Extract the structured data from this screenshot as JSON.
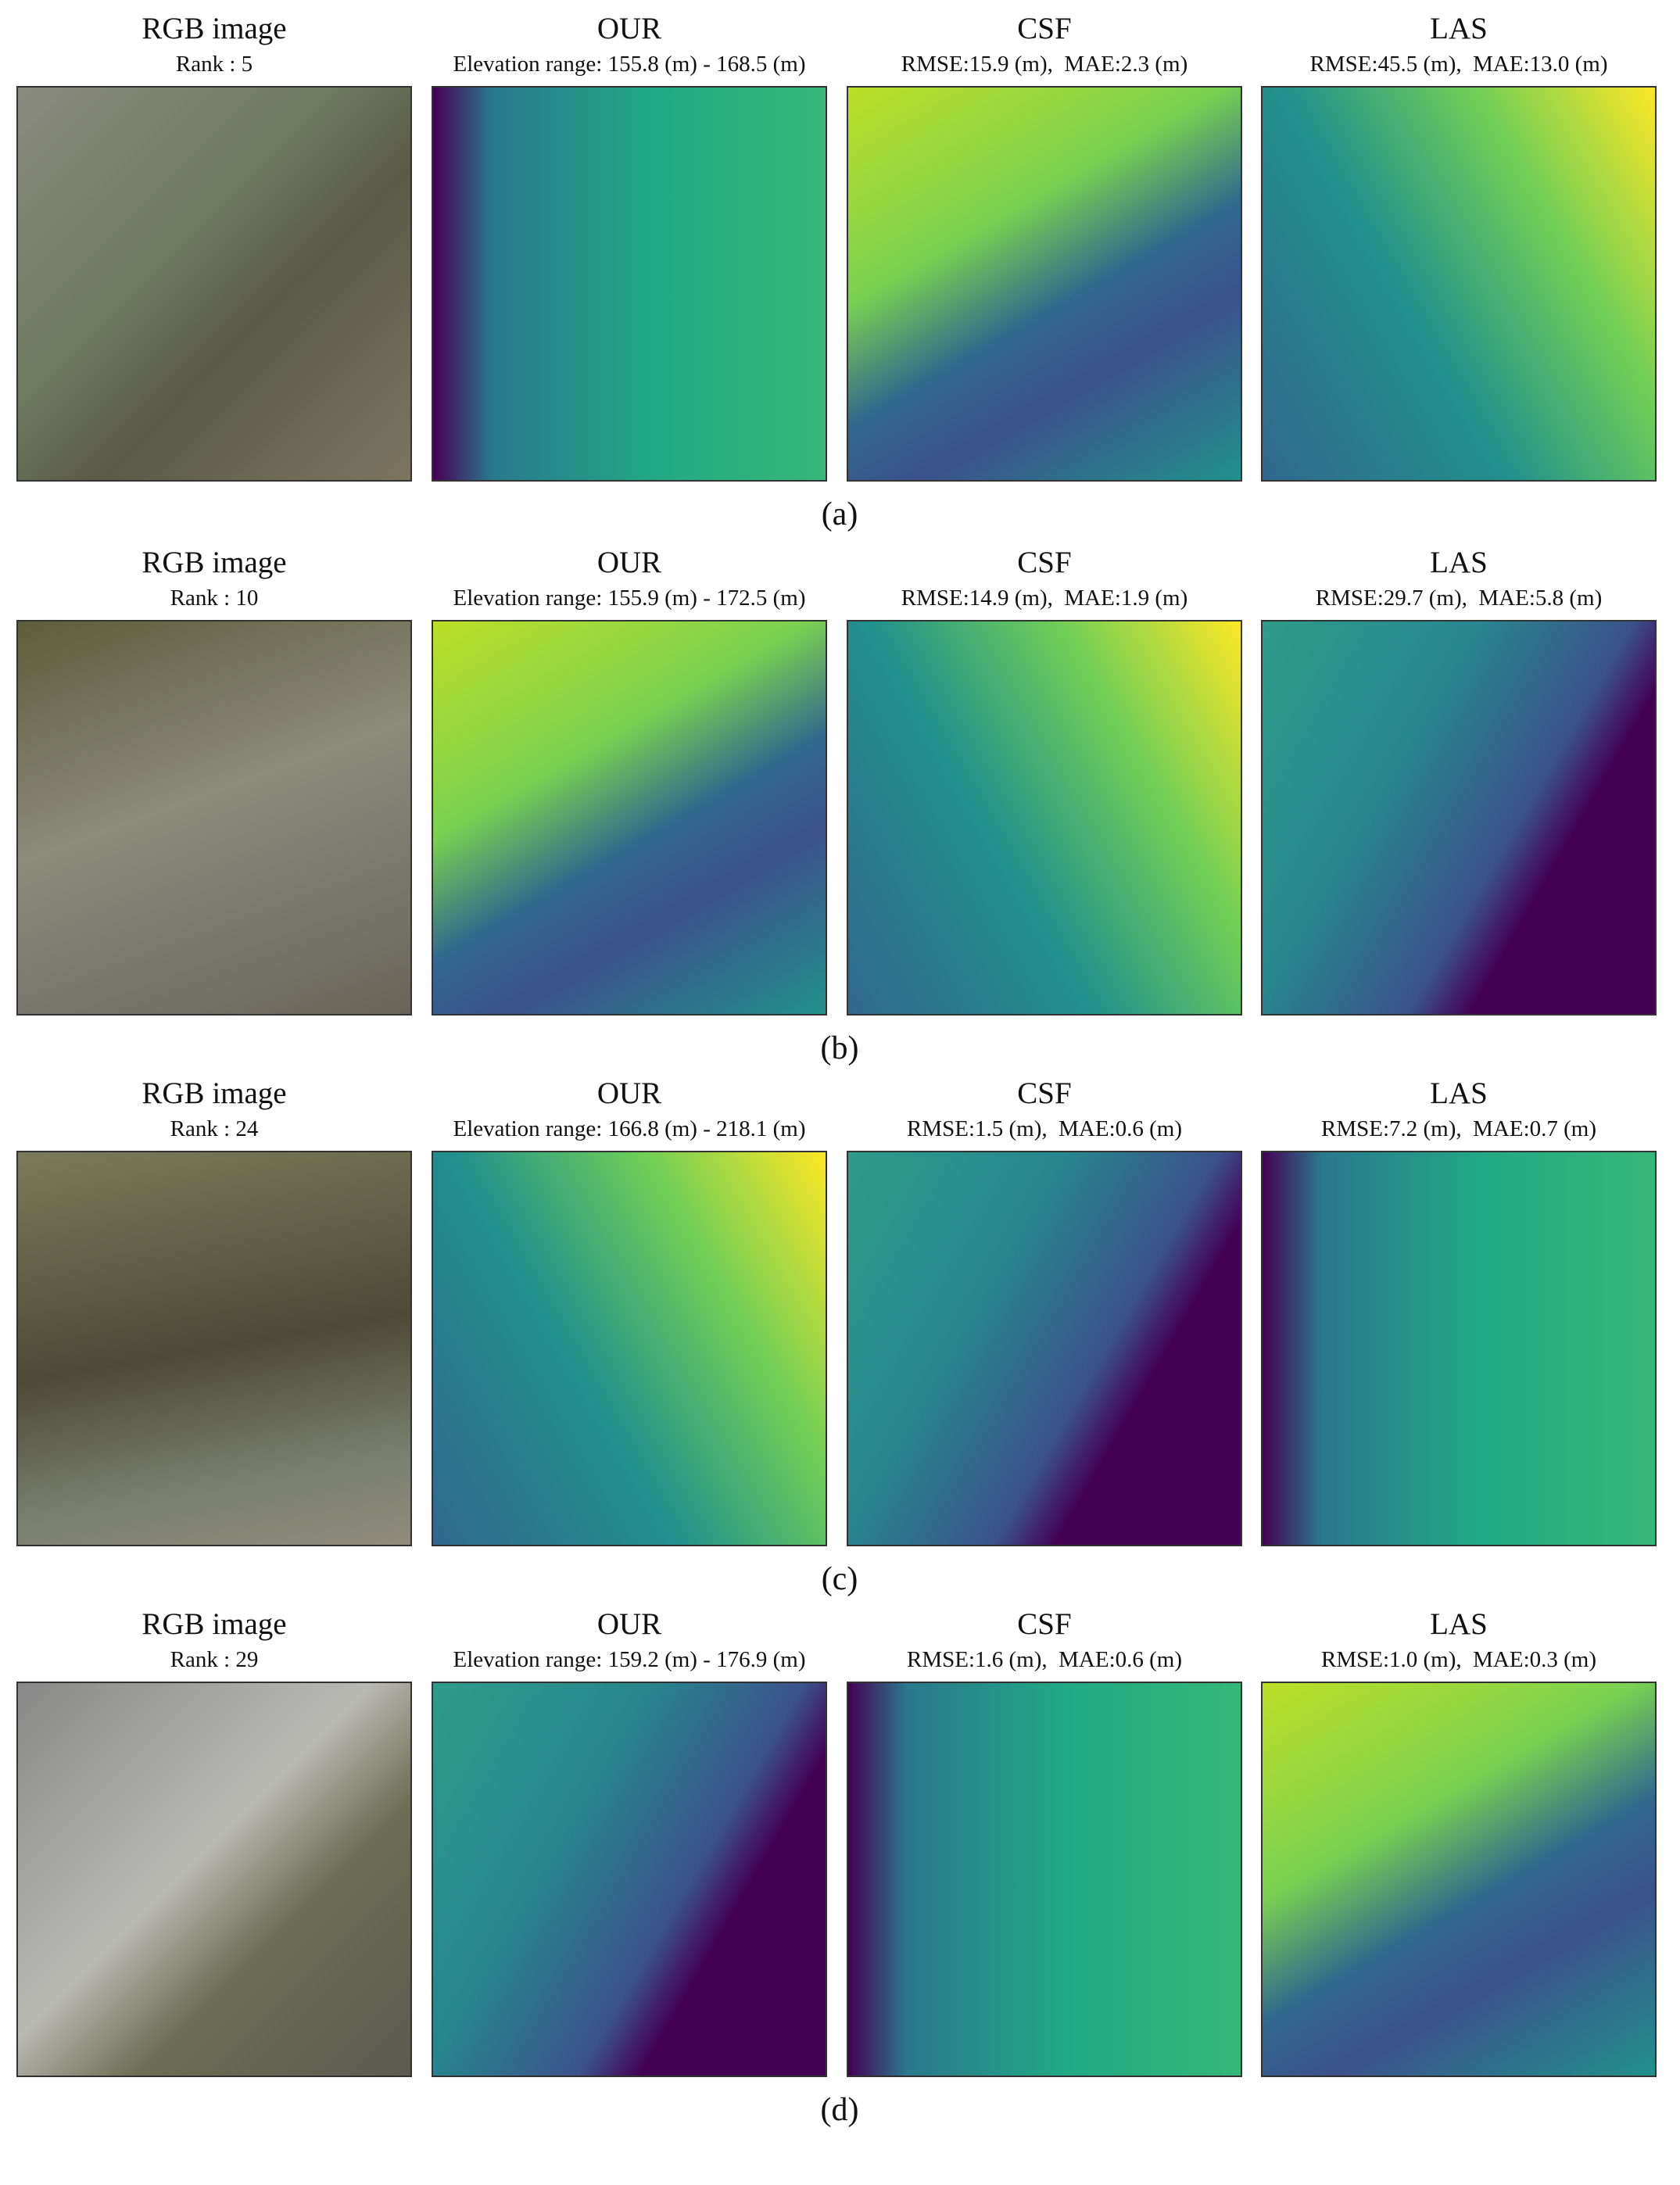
{
  "figure": {
    "rows": [
      {
        "panels": [
          {
            "title": "RGB image",
            "subtitle": "Rank : 5"
          },
          {
            "title": "OUR",
            "subtitle": "Elevation range: 155.8 (m) - 168.5 (m)"
          },
          {
            "title": "CSF",
            "subtitle": "RMSE:15.9 (m),  MAE:2.3 (m)"
          },
          {
            "title": "LAS",
            "subtitle": "RMSE:45.5 (m),  MAE:13.0 (m)"
          }
        ],
        "caption": "(a)"
      },
      {
        "panels": [
          {
            "title": "RGB image",
            "subtitle": "Rank : 10"
          },
          {
            "title": "OUR",
            "subtitle": "Elevation range: 155.9 (m) - 172.5 (m)"
          },
          {
            "title": "CSF",
            "subtitle": "RMSE:14.9 (m),  MAE:1.9 (m)"
          },
          {
            "title": "LAS",
            "subtitle": "RMSE:29.7 (m),  MAE:5.8 (m)"
          }
        ],
        "caption": "(b)"
      },
      {
        "panels": [
          {
            "title": "RGB image",
            "subtitle": "Rank : 24"
          },
          {
            "title": "OUR",
            "subtitle": "Elevation range: 166.8 (m) - 218.1 (m)"
          },
          {
            "title": "CSF",
            "subtitle": "RMSE:1.5 (m),  MAE:0.6 (m)"
          },
          {
            "title": "LAS",
            "subtitle": "RMSE:7.2 (m),  MAE:0.7 (m)"
          }
        ],
        "caption": "(c)"
      },
      {
        "panels": [
          {
            "title": "RGB image",
            "subtitle": "Rank : 29"
          },
          {
            "title": "OUR",
            "subtitle": "Elevation range: 159.2 (m) - 176.9 (m)"
          },
          {
            "title": "CSF",
            "subtitle": "RMSE:1.6 (m),  MAE:0.6 (m)"
          },
          {
            "title": "LAS",
            "subtitle": "RMSE:1.0 (m),  MAE:0.3 (m)"
          }
        ],
        "caption": "(d)"
      }
    ]
  }
}
